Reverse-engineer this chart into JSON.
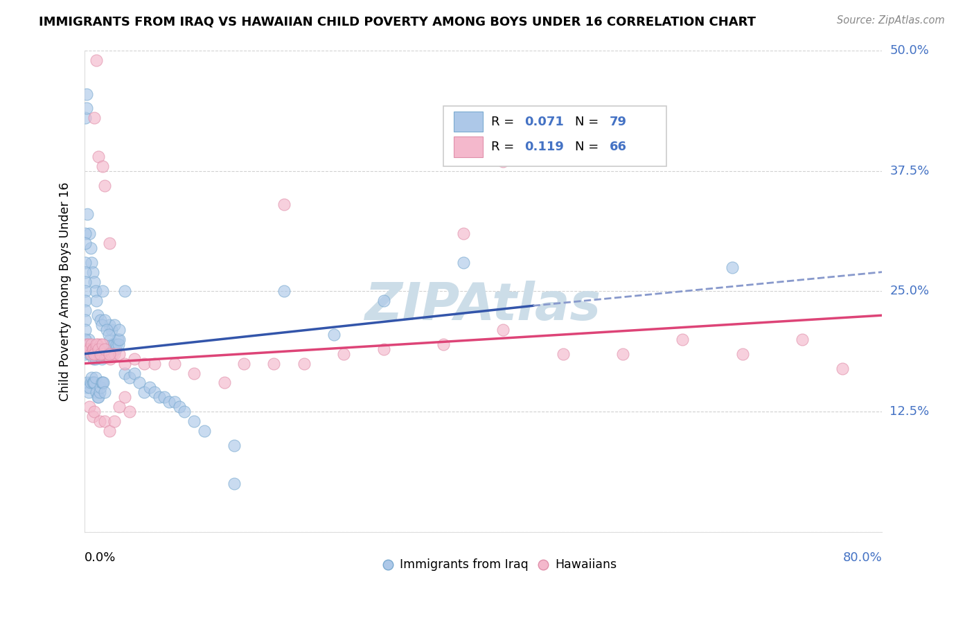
{
  "title": "IMMIGRANTS FROM IRAQ VS HAWAIIAN CHILD POVERTY AMONG BOYS UNDER 16 CORRELATION CHART",
  "source": "Source: ZipAtlas.com",
  "ylabel": "Child Poverty Among Boys Under 16",
  "legend_label1": "Immigrants from Iraq",
  "legend_label2": "Hawaiians",
  "R1": "0.071",
  "N1": "79",
  "R2": "0.119",
  "N2": "66",
  "color_blue_fill": "#adc8e8",
  "color_blue_edge": "#7aaad0",
  "color_pink_fill": "#f4b8cc",
  "color_pink_edge": "#e090aa",
  "color_trend_blue": "#3355aa",
  "color_trend_pink": "#dd4477",
  "color_trend_blue_dash": "#8899cc",
  "color_watermark": "#ccdde8",
  "color_grid": "#cccccc",
  "blue_x": [
    0.001,
    0.002,
    0.003,
    0.004,
    0.005,
    0.006,
    0.007,
    0.008,
    0.009,
    0.01,
    0.011,
    0.012,
    0.013,
    0.014,
    0.015,
    0.016,
    0.017,
    0.018,
    0.019,
    0.02,
    0.021,
    0.022,
    0.023,
    0.024,
    0.025,
    0.026,
    0.027,
    0.028,
    0.029,
    0.03,
    0.031,
    0.032,
    0.033,
    0.034,
    0.035,
    0.04,
    0.045,
    0.05,
    0.055,
    0.06,
    0.065,
    0.07,
    0.075,
    0.08,
    0.085,
    0.09,
    0.095,
    0.1,
    0.11,
    0.12,
    0.002,
    0.003,
    0.004,
    0.005,
    0.006,
    0.007,
    0.008,
    0.009,
    0.01,
    0.011,
    0.012,
    0.013,
    0.014,
    0.015,
    0.016,
    0.017,
    0.018,
    0.019,
    0.02,
    0.025,
    0.03,
    0.035,
    0.04,
    0.15,
    0.2,
    0.25,
    0.3,
    0.38,
    0.65
  ],
  "blue_y": [
    0.185,
    0.195,
    0.19,
    0.2,
    0.185,
    0.185,
    0.185,
    0.185,
    0.18,
    0.185,
    0.18,
    0.185,
    0.19,
    0.185,
    0.19,
    0.185,
    0.18,
    0.185,
    0.185,
    0.185,
    0.185,
    0.19,
    0.185,
    0.185,
    0.185,
    0.2,
    0.21,
    0.195,
    0.19,
    0.195,
    0.19,
    0.195,
    0.2,
    0.195,
    0.2,
    0.165,
    0.16,
    0.165,
    0.155,
    0.145,
    0.15,
    0.145,
    0.14,
    0.14,
    0.135,
    0.135,
    0.13,
    0.125,
    0.115,
    0.105,
    0.15,
    0.155,
    0.145,
    0.15,
    0.155,
    0.16,
    0.155,
    0.155,
    0.155,
    0.16,
    0.145,
    0.14,
    0.14,
    0.145,
    0.15,
    0.155,
    0.155,
    0.155,
    0.145,
    0.215,
    0.215,
    0.21,
    0.25,
    0.09,
    0.25,
    0.205,
    0.24,
    0.28,
    0.275
  ],
  "blue_y_high": [
    0.43,
    0.455,
    0.44,
    0.33,
    0.31,
    0.295,
    0.28,
    0.27,
    0.26,
    0.25,
    0.24,
    0.225,
    0.22,
    0.215,
    0.25,
    0.22,
    0.21,
    0.205,
    0.31,
    0.3,
    0.28,
    0.27,
    0.26,
    0.25,
    0.24,
    0.23,
    0.22,
    0.21,
    0.2,
    0.05
  ],
  "blue_x_high": [
    0.001,
    0.002,
    0.002,
    0.003,
    0.005,
    0.006,
    0.007,
    0.008,
    0.01,
    0.011,
    0.012,
    0.013,
    0.016,
    0.017,
    0.018,
    0.02,
    0.022,
    0.024,
    0.001,
    0.001,
    0.001,
    0.001,
    0.001,
    0.001,
    0.001,
    0.001,
    0.001,
    0.001,
    0.001,
    0.15
  ],
  "pink_x": [
    0.002,
    0.003,
    0.004,
    0.005,
    0.006,
    0.007,
    0.008,
    0.009,
    0.01,
    0.011,
    0.012,
    0.013,
    0.014,
    0.015,
    0.016,
    0.017,
    0.018,
    0.019,
    0.02,
    0.022,
    0.024,
    0.026,
    0.028,
    0.03,
    0.035,
    0.04,
    0.05,
    0.06,
    0.07,
    0.09,
    0.11,
    0.14,
    0.16,
    0.19,
    0.22,
    0.26,
    0.3,
    0.36,
    0.42,
    0.48,
    0.54,
    0.6,
    0.66,
    0.72,
    0.76,
    0.01,
    0.012,
    0.014,
    0.016,
    0.018,
    0.02,
    0.025,
    0.005,
    0.008,
    0.01,
    0.015,
    0.02,
    0.025,
    0.03,
    0.035,
    0.04,
    0.045
  ],
  "pink_y": [
    0.195,
    0.19,
    0.195,
    0.19,
    0.185,
    0.195,
    0.19,
    0.19,
    0.185,
    0.19,
    0.185,
    0.195,
    0.185,
    0.185,
    0.195,
    0.185,
    0.185,
    0.185,
    0.185,
    0.185,
    0.185,
    0.18,
    0.185,
    0.185,
    0.185,
    0.175,
    0.18,
    0.175,
    0.175,
    0.175,
    0.165,
    0.155,
    0.175,
    0.175,
    0.175,
    0.185,
    0.19,
    0.195,
    0.21,
    0.185,
    0.185,
    0.2,
    0.185,
    0.2,
    0.17,
    0.185,
    0.195,
    0.19,
    0.185,
    0.195,
    0.19,
    0.185,
    0.13,
    0.12,
    0.125,
    0.115,
    0.115,
    0.105,
    0.115,
    0.13,
    0.14,
    0.125
  ],
  "pink_y_high": [
    0.49,
    0.43,
    0.39,
    0.3,
    0.38,
    0.36,
    0.31,
    0.385,
    0.34
  ],
  "pink_x_high": [
    0.012,
    0.01,
    0.014,
    0.025,
    0.018,
    0.02,
    0.38,
    0.42,
    0.2
  ],
  "trend_blue_start_x": 0.0,
  "trend_blue_end_x": 0.45,
  "trend_blue_start_y": 0.185,
  "trend_blue_end_y": 0.235,
  "trend_blue_dash_start_x": 0.45,
  "trend_blue_dash_end_x": 0.8,
  "trend_blue_dash_start_y": 0.235,
  "trend_blue_dash_end_y": 0.27,
  "trend_pink_start_x": 0.0,
  "trend_pink_end_x": 0.8,
  "trend_pink_start_y": 0.175,
  "trend_pink_end_y": 0.225,
  "xlim": [
    0,
    0.8
  ],
  "ylim": [
    0,
    0.5
  ],
  "ytick_values": [
    0.0,
    0.125,
    0.25,
    0.375,
    0.5
  ],
  "ytick_labels": [
    "",
    "12.5%",
    "25.0%",
    "37.5%",
    "50.0%"
  ]
}
